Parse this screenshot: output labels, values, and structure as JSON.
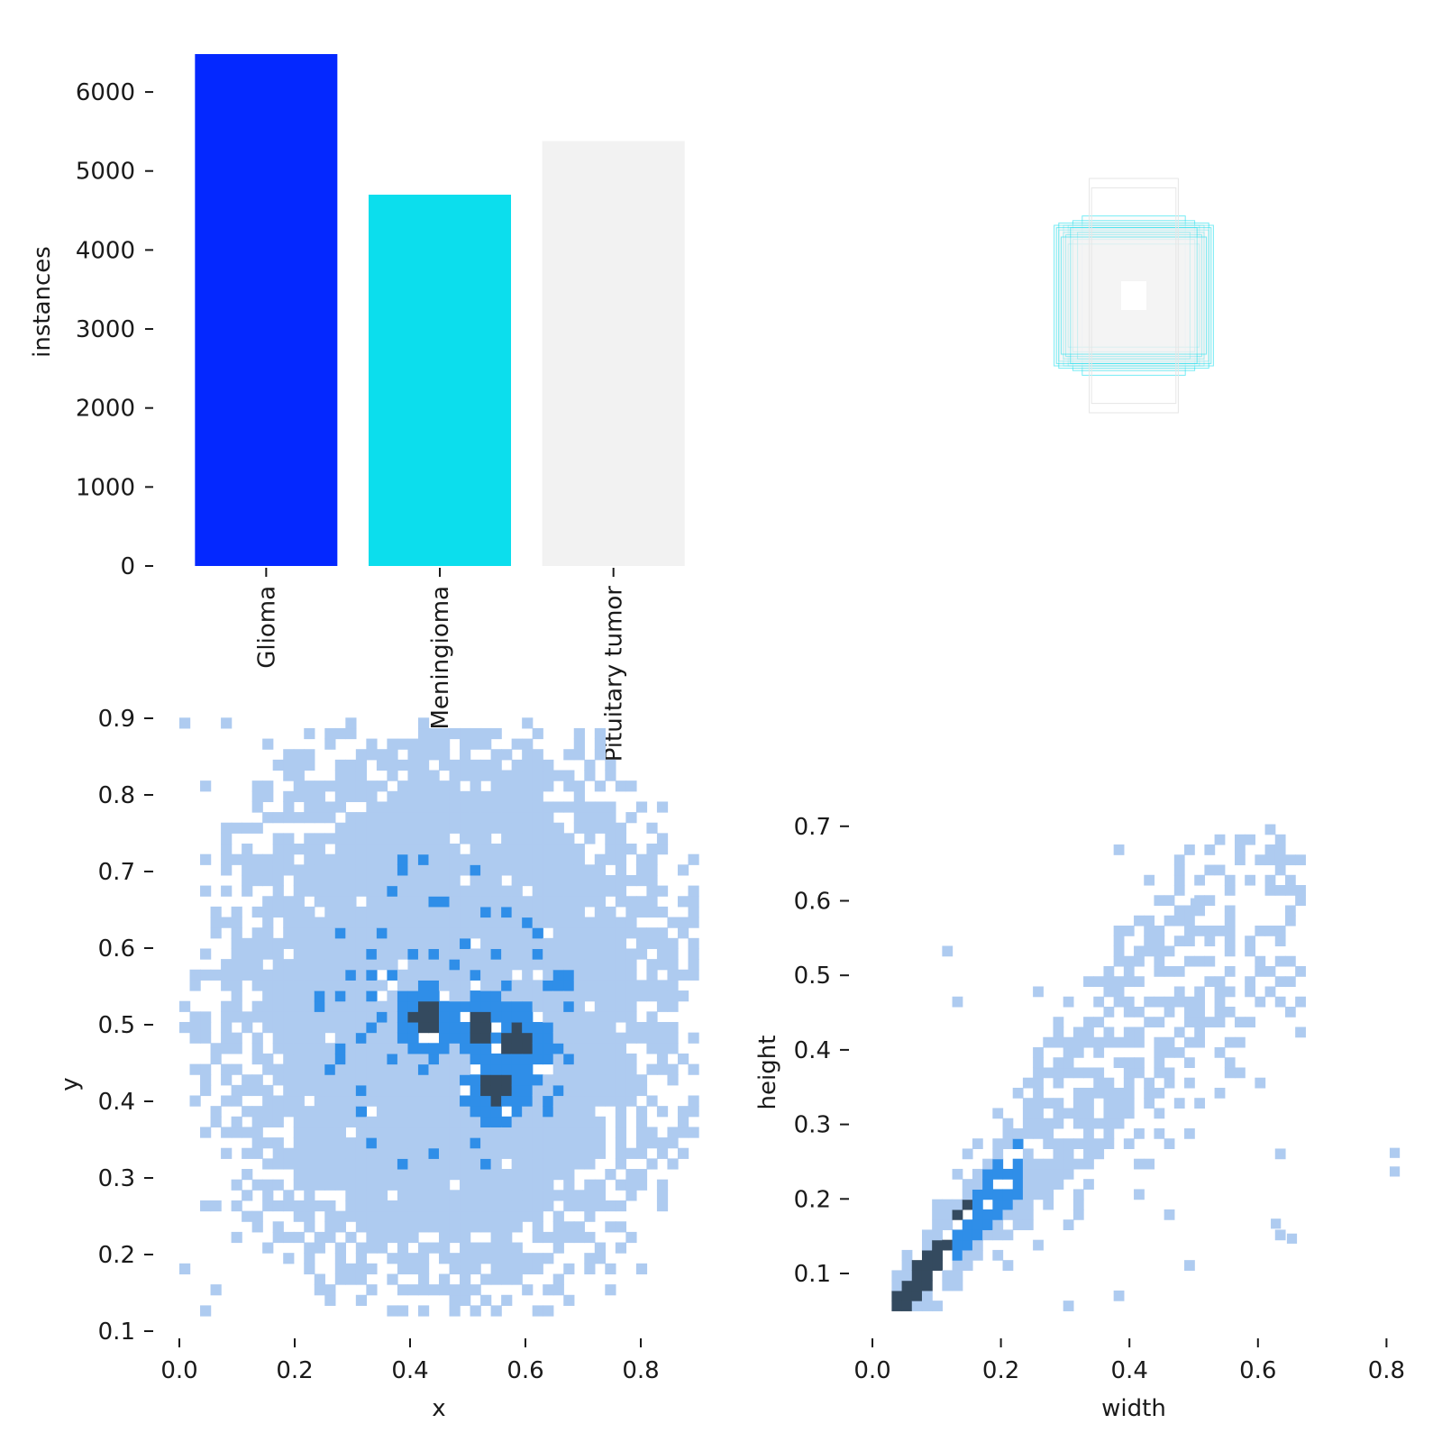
{
  "chart_data": [
    {
      "type": "bar",
      "categories": [
        "Glioma",
        "Meningioma",
        "Pituitary tumor"
      ],
      "values": [
        6480,
        4700,
        5380
      ],
      "colors": [
        "#0428ff",
        "#0cdeed",
        "#f2f2f2"
      ],
      "ylabel": "instances",
      "yticks": [
        "0",
        "1000",
        "2000",
        "3000",
        "4000",
        "5000",
        "6000"
      ],
      "ylim": [
        0,
        6480
      ]
    },
    {
      "type": "other",
      "description_free": true,
      "box_outline_color": "#0cdeed",
      "box_fill_color": "#f2f2f2",
      "boxes_wh": [
        [
          0.22,
          0.34
        ],
        [
          0.26,
          0.32
        ],
        [
          0.3,
          0.3
        ],
        [
          0.28,
          0.3
        ],
        [
          0.34,
          0.3
        ],
        [
          0.32,
          0.28
        ],
        [
          0.3,
          0.27
        ],
        [
          0.26,
          0.24
        ],
        [
          0.28,
          0.22
        ],
        [
          0.32,
          0.31
        ],
        [
          0.24,
          0.27
        ],
        [
          0.29,
          0.26
        ],
        [
          0.33,
          0.29
        ],
        [
          0.27,
          0.29
        ],
        [
          0.31,
          0.25
        ],
        [
          0.19,
          0.5
        ],
        [
          0.18,
          0.46
        ]
      ]
    },
    {
      "type": "heatmap",
      "xlabel": "x",
      "ylabel": "y",
      "xticks": [
        "0.0",
        "0.2",
        "0.4",
        "0.6",
        "0.8"
      ],
      "yticks": [
        "0.1",
        "0.2",
        "0.3",
        "0.4",
        "0.5",
        "0.6",
        "0.7",
        "0.8",
        "0.9"
      ],
      "xlim": [
        0.0,
        0.9
      ],
      "ylim": [
        0.1,
        0.9
      ],
      "hotspots": [
        [
          0.42,
          0.5
        ],
        [
          0.52,
          0.49
        ],
        [
          0.54,
          0.41
        ],
        [
          0.58,
          0.47
        ]
      ],
      "colors": [
        "#aecbf0",
        "#2f8ee8",
        "#344a5f"
      ]
    },
    {
      "type": "heatmap",
      "xlabel": "width",
      "ylabel": "height",
      "xticks": [
        "0.0",
        "0.2",
        "0.4",
        "0.6",
        "0.8"
      ],
      "yticks": [
        "0.1",
        "0.2",
        "0.3",
        "0.4",
        "0.5",
        "0.6",
        "0.7"
      ],
      "xlim": [
        0.0,
        0.8
      ],
      "ylim": [
        0.05,
        0.7
      ],
      "trend": [
        [
          0.08,
          0.08
        ],
        [
          0.13,
          0.14
        ],
        [
          0.19,
          0.21
        ],
        [
          0.3,
          0.32
        ],
        [
          0.4,
          0.42
        ]
      ],
      "colors": [
        "#aecbf0",
        "#2f8ee8",
        "#344a5f"
      ]
    }
  ]
}
